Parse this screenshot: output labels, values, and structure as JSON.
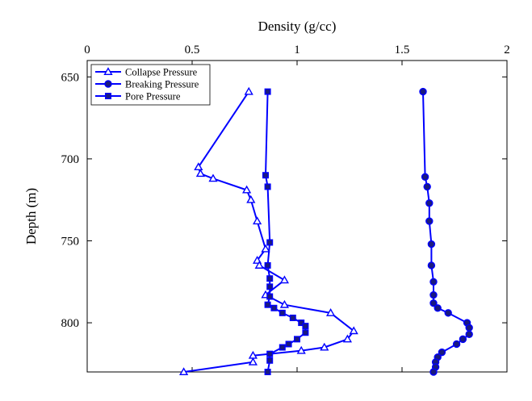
{
  "chart_data": {
    "type": "line",
    "title": "",
    "xlabel": "Density (g/cc)",
    "ylabel": "Depth (m)",
    "x_axis_position": "top",
    "y_axis_inverted": true,
    "xlim": [
      0,
      2
    ],
    "ylim": [
      830,
      640
    ],
    "x_ticks": [
      0,
      0.5,
      1,
      1.5,
      2
    ],
    "x_tick_labels": [
      "0",
      "0.5",
      "1",
      "1.5",
      "2"
    ],
    "y_ticks": [
      650,
      700,
      750,
      800
    ],
    "y_tick_labels": [
      "650",
      "700",
      "750",
      "800"
    ],
    "grid": false,
    "legend_position": "top-left",
    "series_color": "#0000ff",
    "series": [
      {
        "name": "Collapse Pressure",
        "marker": "triangle",
        "points": [
          {
            "x": 0.77,
            "y": 659
          },
          {
            "x": 0.53,
            "y": 705
          },
          {
            "x": 0.54,
            "y": 709
          },
          {
            "x": 0.6,
            "y": 712
          },
          {
            "x": 0.76,
            "y": 719
          },
          {
            "x": 0.78,
            "y": 725
          },
          {
            "x": 0.81,
            "y": 738
          },
          {
            "x": 0.85,
            "y": 755
          },
          {
            "x": 0.81,
            "y": 762
          },
          {
            "x": 0.82,
            "y": 765
          },
          {
            "x": 0.94,
            "y": 774
          },
          {
            "x": 0.85,
            "y": 783
          },
          {
            "x": 0.94,
            "y": 789
          },
          {
            "x": 1.16,
            "y": 794
          },
          {
            "x": 1.27,
            "y": 805
          },
          {
            "x": 1.24,
            "y": 810
          },
          {
            "x": 1.13,
            "y": 815
          },
          {
            "x": 1.02,
            "y": 817
          },
          {
            "x": 0.79,
            "y": 820
          },
          {
            "x": 0.79,
            "y": 824
          },
          {
            "x": 0.46,
            "y": 830
          }
        ]
      },
      {
        "name": "Breaking Pressure",
        "marker": "circle",
        "points": [
          {
            "x": 1.6,
            "y": 659
          },
          {
            "x": 1.61,
            "y": 711
          },
          {
            "x": 1.62,
            "y": 717
          },
          {
            "x": 1.63,
            "y": 727
          },
          {
            "x": 1.63,
            "y": 738
          },
          {
            "x": 1.64,
            "y": 752
          },
          {
            "x": 1.64,
            "y": 765
          },
          {
            "x": 1.65,
            "y": 775
          },
          {
            "x": 1.65,
            "y": 783
          },
          {
            "x": 1.65,
            "y": 788
          },
          {
            "x": 1.67,
            "y": 791
          },
          {
            "x": 1.72,
            "y": 794
          },
          {
            "x": 1.81,
            "y": 800
          },
          {
            "x": 1.82,
            "y": 803
          },
          {
            "x": 1.82,
            "y": 807
          },
          {
            "x": 1.79,
            "y": 810
          },
          {
            "x": 1.76,
            "y": 813
          },
          {
            "x": 1.69,
            "y": 818
          },
          {
            "x": 1.67,
            "y": 821
          },
          {
            "x": 1.66,
            "y": 824
          },
          {
            "x": 1.66,
            "y": 827
          },
          {
            "x": 1.65,
            "y": 830
          }
        ]
      },
      {
        "name": "Pore Pressure",
        "marker": "square",
        "points": [
          {
            "x": 0.86,
            "y": 659
          },
          {
            "x": 0.85,
            "y": 710
          },
          {
            "x": 0.86,
            "y": 717
          },
          {
            "x": 0.87,
            "y": 751
          },
          {
            "x": 0.86,
            "y": 765
          },
          {
            "x": 0.87,
            "y": 773
          },
          {
            "x": 0.87,
            "y": 778
          },
          {
            "x": 0.87,
            "y": 784
          },
          {
            "x": 0.86,
            "y": 789
          },
          {
            "x": 0.89,
            "y": 791
          },
          {
            "x": 0.93,
            "y": 794
          },
          {
            "x": 0.98,
            "y": 797
          },
          {
            "x": 1.02,
            "y": 800
          },
          {
            "x": 1.04,
            "y": 802
          },
          {
            "x": 1.04,
            "y": 806
          },
          {
            "x": 1.0,
            "y": 810
          },
          {
            "x": 0.96,
            "y": 813
          },
          {
            "x": 0.93,
            "y": 815
          },
          {
            "x": 0.87,
            "y": 819
          },
          {
            "x": 0.87,
            "y": 823
          },
          {
            "x": 0.86,
            "y": 830
          }
        ]
      }
    ]
  }
}
